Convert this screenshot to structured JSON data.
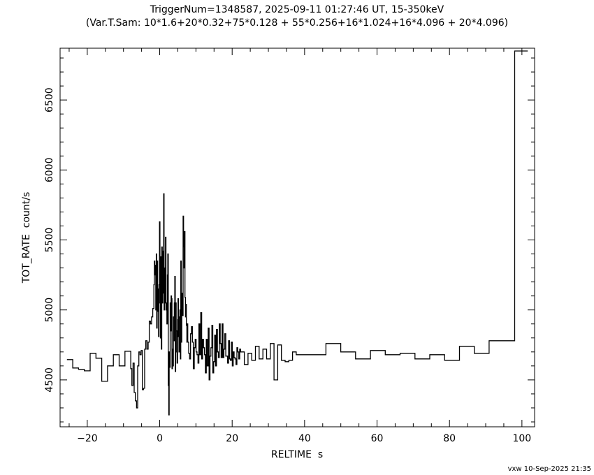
{
  "chart_data": {
    "type": "line",
    "step": true,
    "title": "TriggerNum=1348587, 2025-09-11 01:27:46 UT, 15-350keV",
    "subtitle": "(Var.T.Sam: 10*1.6+20*0.32+75*0.128  +  55*0.256+16*1.024+16*4.096  +  20*4.096)",
    "xlabel": "RELTIME  s",
    "ylabel": "TOT_RATE  count/s",
    "footer": "vxw 10-Sep-2025 21:35",
    "xlim": [
      -27.5,
      103.5
    ],
    "ylim": [
      4165,
      6870
    ],
    "x_ticks": [
      -20,
      0,
      20,
      40,
      60,
      80,
      100
    ],
    "y_ticks": [
      4500,
      5000,
      5500,
      6000,
      6500
    ],
    "x_tick_labels": [
      "−20",
      "0",
      "20",
      "40",
      "60",
      "80",
      "100"
    ],
    "y_tick_labels": [
      "4500",
      "5000",
      "5500",
      "6000",
      "6500"
    ],
    "grid": false,
    "color": "#000000",
    "x": [
      -25.6,
      -24.0,
      -22.4,
      -20.8,
      -19.2,
      -17.6,
      -16.0,
      -14.4,
      -12.8,
      -11.2,
      -9.6,
      -8.0,
      -7.68,
      -7.36,
      -7.04,
      -6.72,
      -6.4,
      -6.08,
      -5.76,
      -5.44,
      -5.12,
      -4.8,
      -4.48,
      -4.16,
      -3.84,
      -3.52,
      -3.2,
      -2.88,
      -2.56,
      -2.24,
      -1.92,
      -1.6,
      -1.472,
      -1.344,
      -1.216,
      -1.088,
      -0.96,
      -0.832,
      -0.704,
      -0.576,
      -0.448,
      -0.32,
      -0.192,
      -0.064,
      0.064,
      0.192,
      0.32,
      0.448,
      0.576,
      0.704,
      0.832,
      0.96,
      1.088,
      1.216,
      1.344,
      1.472,
      1.6,
      1.728,
      1.856,
      1.984,
      2.112,
      2.24,
      2.368,
      2.496,
      2.624,
      2.752,
      2.88,
      3.008,
      3.136,
      3.264,
      3.392,
      3.52,
      3.648,
      3.776,
      3.904,
      4.032,
      4.16,
      4.288,
      4.416,
      4.544,
      4.672,
      4.8,
      4.928,
      5.056,
      5.184,
      5.312,
      5.44,
      5.568,
      5.696,
      5.824,
      5.952,
      6.08,
      6.208,
      6.336,
      6.464,
      6.592,
      6.72,
      6.848,
      6.976,
      7.104,
      7.232,
      7.36,
      7.488,
      7.616,
      7.744,
      7.999,
      8.255,
      8.511,
      8.767,
      9.023,
      9.279,
      9.535,
      9.791,
      10.047,
      10.303,
      10.559,
      10.815,
      11.071,
      11.327,
      11.583,
      11.839,
      12.095,
      12.351,
      12.607,
      12.863,
      13.119,
      13.375,
      13.631,
      13.887,
      14.143,
      14.399,
      14.655,
      14.911,
      15.167,
      15.423,
      15.679,
      15.935,
      16.191,
      16.447,
      16.703,
      16.959,
      17.215,
      17.471,
      17.727,
      17.983,
      18.239,
      18.495,
      18.751,
      19.007,
      19.263,
      19.519,
      19.775,
      20.031,
      20.287,
      20.543,
      20.799,
      21.055,
      21.311,
      21.567,
      21.823,
      22.079,
      22.335,
      23.359,
      24.383,
      25.407,
      26.431,
      27.455,
      28.479,
      29.503,
      30.527,
      31.551,
      32.575,
      33.599,
      34.623,
      35.647,
      36.671,
      37.695,
      41.791,
      45.887,
      49.983,
      54.079,
      58.175,
      62.271,
      66.367,
      70.463,
      74.559,
      78.655,
      82.751,
      86.847,
      90.943,
      98.0
    ],
    "values": [
      4645,
      4585,
      4575,
      4565,
      4690,
      4655,
      4490,
      4600,
      4680,
      4600,
      4705,
      4580,
      4460,
      4620,
      4410,
      4350,
      4300,
      4600,
      4700,
      4680,
      4710,
      4430,
      4440,
      4720,
      4780,
      4720,
      4770,
      4920,
      4900,
      4950,
      5010,
      5180,
      5350,
      5250,
      5320,
      5000,
      5400,
      4870,
      5350,
      5150,
      4990,
      4810,
      5180,
      5630,
      5050,
      4800,
      5380,
      4720,
      5450,
      5050,
      5120,
      5420,
      5830,
      5000,
      5300,
      5050,
      5520,
      5000,
      5050,
      4900,
      5250,
      5400,
      4460,
      4250,
      4700,
      4590,
      5050,
      4850,
      5100,
      5080,
      4580,
      4720,
      4600,
      4950,
      4780,
      5050,
      5240,
      4560,
      5050,
      4850,
      4700,
      4620,
      4930,
      5080,
      4810,
      4700,
      4950,
      5000,
      4650,
      5350,
      4770,
      5120,
      5100,
      4960,
      5670,
      5450,
      5300,
      5560,
      5090,
      4950,
      5040,
      4890,
      4770,
      4900,
      4770,
      4690,
      4650,
      4830,
      4880,
      4770,
      4580,
      4730,
      4790,
      4700,
      4680,
      4620,
      4900,
      4680,
      4980,
      4650,
      4790,
      4730,
      4680,
      4550,
      4790,
      4600,
      4870,
      4500,
      4670,
      4730,
      4890,
      4550,
      4630,
      4820,
      4600,
      4860,
      4700,
      4660,
      4900,
      4760,
      4660,
      4900,
      4660,
      4720,
      4830,
      4670,
      4670,
      4620,
      4780,
      4650,
      4640,
      4770,
      4600,
      4700,
      4660,
      4650,
      4610,
      4730,
      4700,
      4650,
      4720,
      4700,
      4610,
      4690,
      4640,
      4740,
      4650,
      4720,
      4650,
      4760,
      4500,
      4750,
      4640,
      4630,
      4640,
      4700,
      4680,
      4680,
      4760,
      4700,
      4650,
      4710,
      4680,
      4690,
      4650,
      4680,
      4640,
      4740,
      4690,
      4780,
      6850
    ],
    "xend": 101.6
  }
}
